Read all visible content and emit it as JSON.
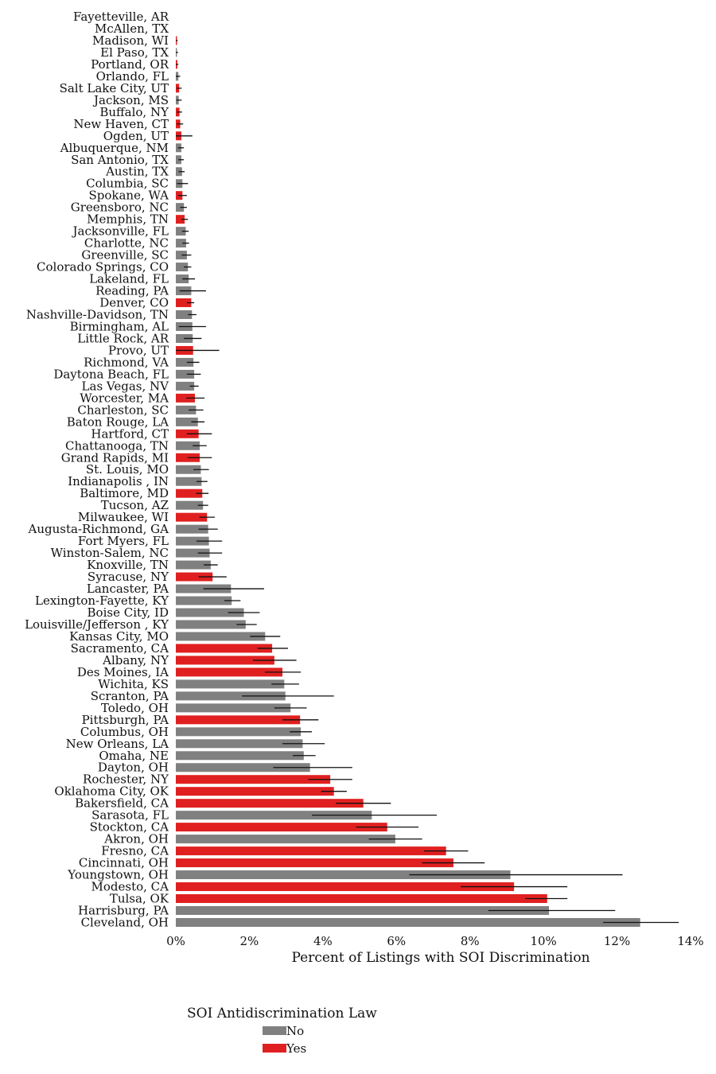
{
  "chart_data": {
    "type": "bar",
    "orientation": "horizontal",
    "title": "",
    "xlabel": "Percent of Listings with SOI Discrimination",
    "ylabel": "",
    "xlim": [
      0,
      14
    ],
    "xticks": [
      0,
      2,
      4,
      6,
      8,
      10,
      12,
      14
    ],
    "xtick_labels": [
      "0%",
      "2%",
      "4%",
      "6%",
      "8%",
      "10%",
      "12%",
      "14%"
    ],
    "grid": false,
    "legend": {
      "title": "SOI Antidiscrimination Law",
      "placement": "bottom-center",
      "entries": [
        {
          "key": "no",
          "label": "No",
          "color": "#808080"
        },
        {
          "key": "yes",
          "label": "Yes",
          "color": "#e02020"
        }
      ]
    },
    "rows": [
      {
        "city": "Fayetteville, AR",
        "law": "no",
        "value": 0.0,
        "err": [
          0.0,
          0.0
        ]
      },
      {
        "city": "McAllen, TX",
        "law": "no",
        "value": 0.0,
        "err": [
          0.0,
          0.0
        ]
      },
      {
        "city": "Madison, WI",
        "law": "yes",
        "value": 0.03,
        "err": [
          0.0,
          0.05
        ]
      },
      {
        "city": "El Paso, TX",
        "law": "no",
        "value": 0.03,
        "err": [
          0.0,
          0.06
        ]
      },
      {
        "city": "Portland, OR",
        "law": "yes",
        "value": 0.04,
        "err": [
          0.0,
          0.07
        ]
      },
      {
        "city": "Orlando, FL",
        "law": "no",
        "value": 0.07,
        "err": [
          0.0,
          0.12
        ]
      },
      {
        "city": "Salt Lake City, UT",
        "law": "yes",
        "value": 0.09,
        "err": [
          0.02,
          0.16
        ]
      },
      {
        "city": "Jackson, MS",
        "law": "no",
        "value": 0.08,
        "err": [
          0.02,
          0.16
        ]
      },
      {
        "city": "Buffalo, NY",
        "law": "yes",
        "value": 0.1,
        "err": [
          0.03,
          0.17
        ]
      },
      {
        "city": "New Haven, CT",
        "law": "yes",
        "value": 0.12,
        "err": [
          0.03,
          0.2
        ]
      },
      {
        "city": "Ogden, UT",
        "law": "yes",
        "value": 0.15,
        "err": [
          0.0,
          0.45
        ]
      },
      {
        "city": "Albuquerque, NM",
        "law": "no",
        "value": 0.15,
        "err": [
          0.06,
          0.22
        ]
      },
      {
        "city": "San Antonio, TX",
        "law": "no",
        "value": 0.15,
        "err": [
          0.07,
          0.22
        ]
      },
      {
        "city": "Austin, TX",
        "law": "no",
        "value": 0.17,
        "err": [
          0.08,
          0.24
        ]
      },
      {
        "city": "Columbia, SC",
        "law": "no",
        "value": 0.18,
        "err": [
          0.03,
          0.33
        ]
      },
      {
        "city": "Spokane, WA",
        "law": "yes",
        "value": 0.18,
        "err": [
          0.06,
          0.3
        ]
      },
      {
        "city": "Greensboro, NC",
        "law": "no",
        "value": 0.22,
        "err": [
          0.12,
          0.3
        ]
      },
      {
        "city": "Memphis, TN",
        "law": "yes",
        "value": 0.24,
        "err": [
          0.15,
          0.33
        ]
      },
      {
        "city": "Jacksonville, FL",
        "law": "no",
        "value": 0.27,
        "err": [
          0.17,
          0.35
        ]
      },
      {
        "city": "Charlotte, NC",
        "law": "no",
        "value": 0.28,
        "err": [
          0.18,
          0.36
        ]
      },
      {
        "city": "Greenville, SC",
        "law": "no",
        "value": 0.3,
        "err": [
          0.16,
          0.42
        ]
      },
      {
        "city": "Colorado Springs, CO",
        "law": "no",
        "value": 0.33,
        "err": [
          0.22,
          0.42
        ]
      },
      {
        "city": "Lakeland, FL",
        "law": "no",
        "value": 0.35,
        "err": [
          0.18,
          0.52
        ]
      },
      {
        "city": "Reading, PA",
        "law": "no",
        "value": 0.42,
        "err": [
          0.1,
          0.82
        ]
      },
      {
        "city": "Denver, CO",
        "law": "yes",
        "value": 0.42,
        "err": [
          0.3,
          0.5
        ]
      },
      {
        "city": "Nashville-Davidson, TN",
        "law": "no",
        "value": 0.44,
        "err": [
          0.33,
          0.56
        ]
      },
      {
        "city": "Birmingham, AL",
        "law": "no",
        "value": 0.45,
        "err": [
          0.08,
          0.82
        ]
      },
      {
        "city": "Little Rock, AR",
        "law": "no",
        "value": 0.46,
        "err": [
          0.22,
          0.7
        ]
      },
      {
        "city": "Provo, UT",
        "law": "yes",
        "value": 0.47,
        "err": [
          0.0,
          1.18
        ]
      },
      {
        "city": "Richmond, VA",
        "law": "no",
        "value": 0.48,
        "err": [
          0.3,
          0.64
        ]
      },
      {
        "city": "Daytona Beach, FL",
        "law": "no",
        "value": 0.5,
        "err": [
          0.3,
          0.68
        ]
      },
      {
        "city": "Las Vegas, NV",
        "law": "no",
        "value": 0.5,
        "err": [
          0.38,
          0.62
        ]
      },
      {
        "city": "Worcester, MA",
        "law": "yes",
        "value": 0.52,
        "err": [
          0.28,
          0.78
        ]
      },
      {
        "city": "Charleston, SC",
        "law": "no",
        "value": 0.55,
        "err": [
          0.35,
          0.75
        ]
      },
      {
        "city": "Baton Rouge, LA",
        "law": "no",
        "value": 0.6,
        "err": [
          0.42,
          0.78
        ]
      },
      {
        "city": "Hartford, CT",
        "law": "yes",
        "value": 0.62,
        "err": [
          0.3,
          0.98
        ]
      },
      {
        "city": "Chattanooga, TN",
        "law": "no",
        "value": 0.65,
        "err": [
          0.46,
          0.84
        ]
      },
      {
        "city": "Grand Rapids, MI",
        "law": "yes",
        "value": 0.65,
        "err": [
          0.32,
          0.98
        ]
      },
      {
        "city": "St. Louis, MO",
        "law": "no",
        "value": 0.68,
        "err": [
          0.48,
          0.9
        ]
      },
      {
        "city": "Indianapolis , IN",
        "law": "no",
        "value": 0.7,
        "err": [
          0.56,
          0.86
        ]
      },
      {
        "city": "Baltimore, MD",
        "law": "yes",
        "value": 0.72,
        "err": [
          0.55,
          0.89
        ]
      },
      {
        "city": "Tucson, AZ",
        "law": "no",
        "value": 0.74,
        "err": [
          0.6,
          0.88
        ]
      },
      {
        "city": "Milwaukee, WI",
        "law": "yes",
        "value": 0.85,
        "err": [
          0.64,
          1.06
        ]
      },
      {
        "city": "Augusta-Richmond, GA",
        "law": "no",
        "value": 0.88,
        "err": [
          0.62,
          1.14
        ]
      },
      {
        "city": "Fort Myers, FL",
        "law": "no",
        "value": 0.9,
        "err": [
          0.56,
          1.26
        ]
      },
      {
        "city": "Winston-Salem, NC",
        "law": "no",
        "value": 0.92,
        "err": [
          0.6,
          1.26
        ]
      },
      {
        "city": "Knoxville, TN",
        "law": "no",
        "value": 0.95,
        "err": [
          0.76,
          1.14
        ]
      },
      {
        "city": "Syracuse, NY",
        "law": "yes",
        "value": 1.0,
        "err": [
          0.62,
          1.38
        ]
      },
      {
        "city": "Lancaster, PA",
        "law": "no",
        "value": 1.5,
        "err": [
          0.75,
          2.4
        ]
      },
      {
        "city": "Lexington-Fayette, KY",
        "law": "no",
        "value": 1.52,
        "err": [
          1.32,
          1.76
        ]
      },
      {
        "city": "Boise City, ID",
        "law": "no",
        "value": 1.85,
        "err": [
          1.42,
          2.28
        ]
      },
      {
        "city": "Louisville/Jefferson , KY",
        "law": "no",
        "value": 1.9,
        "err": [
          1.65,
          2.2
        ]
      },
      {
        "city": "Kansas City, MO",
        "law": "no",
        "value": 2.43,
        "err": [
          2.02,
          2.84
        ]
      },
      {
        "city": "Sacramento, CA",
        "law": "yes",
        "value": 2.62,
        "err": [
          2.22,
          3.05
        ]
      },
      {
        "city": "Albany, NY",
        "law": "yes",
        "value": 2.68,
        "err": [
          2.1,
          3.28
        ]
      },
      {
        "city": "Des Moines, IA",
        "law": "yes",
        "value": 2.9,
        "err": [
          2.42,
          3.4
        ]
      },
      {
        "city": "Wichita, KS",
        "law": "no",
        "value": 2.95,
        "err": [
          2.6,
          3.35
        ]
      },
      {
        "city": "Scranton, PA",
        "law": "no",
        "value": 2.98,
        "err": [
          1.8,
          4.3
        ]
      },
      {
        "city": "Toledo, OH",
        "law": "no",
        "value": 3.12,
        "err": [
          2.68,
          3.56
        ]
      },
      {
        "city": "Pittsburgh, PA",
        "law": "yes",
        "value": 3.38,
        "err": [
          2.9,
          3.88
        ]
      },
      {
        "city": "Columbus, OH",
        "law": "no",
        "value": 3.4,
        "err": [
          3.1,
          3.7
        ]
      },
      {
        "city": "New Orleans, LA",
        "law": "no",
        "value": 3.45,
        "err": [
          2.9,
          4.05
        ]
      },
      {
        "city": "Omaha, NE",
        "law": "no",
        "value": 3.48,
        "err": [
          3.18,
          3.8
        ]
      },
      {
        "city": "Dayton, OH",
        "law": "no",
        "value": 3.65,
        "err": [
          2.65,
          4.8
        ]
      },
      {
        "city": "Rochester, NY",
        "law": "yes",
        "value": 4.2,
        "err": [
          3.6,
          4.8
        ]
      },
      {
        "city": "Oklahoma City, OK",
        "law": "yes",
        "value": 4.3,
        "err": [
          3.95,
          4.65
        ]
      },
      {
        "city": "Bakersfield, CA",
        "law": "yes",
        "value": 5.1,
        "err": [
          4.35,
          5.85
        ]
      },
      {
        "city": "Sarasota, FL",
        "law": "no",
        "value": 5.33,
        "err": [
          3.7,
          7.1
        ]
      },
      {
        "city": "Stockton, CA",
        "law": "yes",
        "value": 5.75,
        "err": [
          4.9,
          6.6
        ]
      },
      {
        "city": "Akron, OH",
        "law": "no",
        "value": 5.97,
        "err": [
          5.25,
          6.7
        ]
      },
      {
        "city": "Fresno, CA",
        "law": "yes",
        "value": 7.35,
        "err": [
          6.75,
          7.95
        ]
      },
      {
        "city": "Cincinnati, OH",
        "law": "yes",
        "value": 7.55,
        "err": [
          6.7,
          8.4
        ]
      },
      {
        "city": "Youngstown, OH",
        "law": "no",
        "value": 9.1,
        "err": [
          6.35,
          12.15
        ]
      },
      {
        "city": "Modesto, CA",
        "law": "yes",
        "value": 9.2,
        "err": [
          7.75,
          10.65
        ]
      },
      {
        "city": "Tulsa, OK",
        "law": "yes",
        "value": 10.1,
        "err": [
          9.5,
          10.65
        ]
      },
      {
        "city": "Harrisburg, PA",
        "law": "no",
        "value": 10.15,
        "err": [
          8.5,
          11.95
        ]
      },
      {
        "city": "Cleveland, OH",
        "law": "no",
        "value": 12.63,
        "err": [
          11.62,
          13.68
        ]
      }
    ]
  }
}
